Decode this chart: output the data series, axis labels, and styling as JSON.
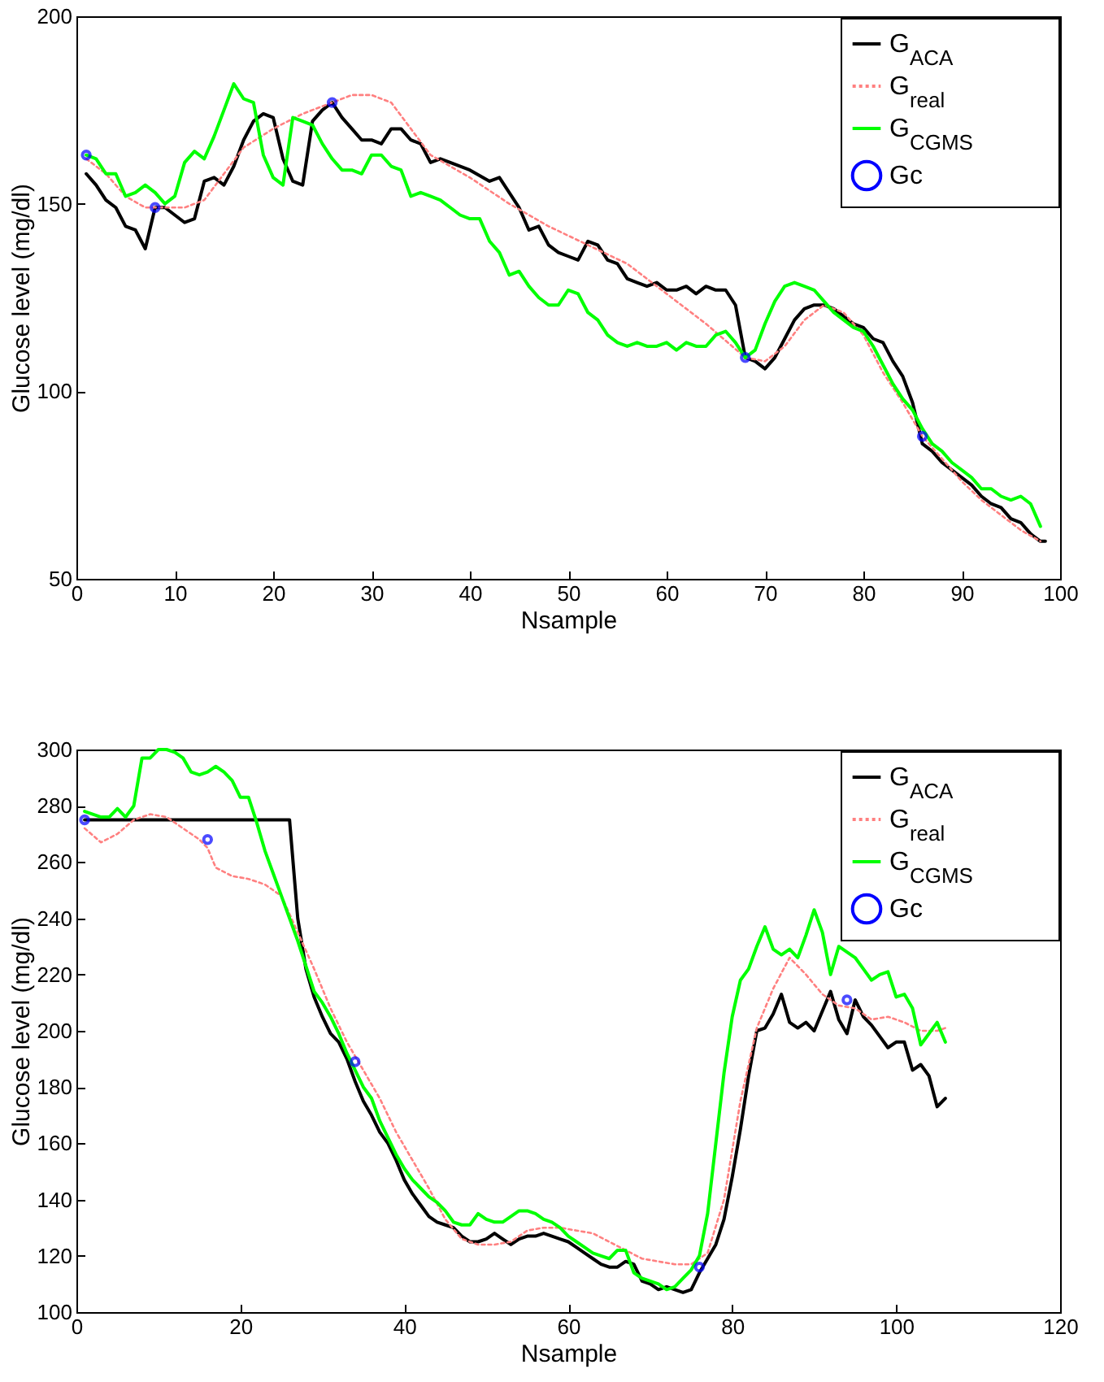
{
  "chart_data": [
    {
      "type": "line",
      "xlabel": "Nsample",
      "ylabel": "Glucose level (mg/dl)",
      "xlim": [
        0,
        100
      ],
      "xticks": [
        0,
        10,
        20,
        30,
        40,
        50,
        60,
        70,
        80,
        90,
        100
      ],
      "ylim": [
        50,
        200
      ],
      "yticks": [
        50,
        100,
        150,
        200
      ],
      "grid": false,
      "legend": "top right",
      "series": [
        {
          "name": "G$_{ACA}$",
          "color": "#000000",
          "type": "line",
          "line_style": "solid",
          "x": [
            1,
            2,
            3,
            4,
            5,
            6,
            7,
            8,
            9,
            10,
            11,
            12,
            13,
            14,
            15,
            16,
            17,
            18,
            19,
            20,
            21,
            22,
            23,
            24,
            25,
            26,
            27,
            28,
            29,
            30,
            31,
            32,
            33,
            34,
            35,
            36,
            37,
            38,
            40,
            42,
            43,
            44,
            45,
            46,
            47,
            48,
            49,
            50,
            51,
            52,
            53,
            54,
            55,
            56,
            57,
            58,
            59,
            60,
            61,
            62,
            63,
            64,
            65,
            66,
            67,
            68,
            69,
            70,
            71,
            72,
            73,
            74,
            75,
            76,
            77,
            78,
            79,
            80,
            81,
            82,
            83,
            84,
            85,
            86,
            87,
            88,
            89,
            90,
            91,
            92,
            93,
            94,
            95,
            96,
            97,
            98,
            98.5
          ],
          "values": [
            158,
            155,
            151,
            149,
            144,
            143,
            138,
            149,
            149,
            147,
            145,
            146,
            156,
            157,
            155,
            160,
            167,
            172,
            174,
            173,
            162,
            156,
            155,
            172,
            175,
            177,
            173,
            170,
            167,
            167,
            166,
            170,
            170,
            167,
            166,
            161,
            162,
            161,
            159,
            156,
            157,
            153,
            149,
            143,
            144,
            139,
            137,
            136,
            135,
            140,
            139,
            135,
            134,
            130,
            129,
            128,
            129,
            127,
            127,
            128,
            126,
            128,
            127,
            127,
            123,
            109,
            108,
            106,
            109,
            114,
            119,
            122,
            123,
            123,
            122,
            120,
            118,
            117,
            114,
            113,
            108,
            104,
            97,
            86,
            84,
            81,
            79,
            77,
            75,
            72,
            70,
            69,
            66,
            65,
            62,
            60,
            60
          ]
        },
        {
          "name": "G$_{real}$",
          "color": "#ff8080",
          "type": "line",
          "line_style": "dotted",
          "x": [
            1,
            3,
            5,
            7,
            9,
            11,
            13,
            15,
            17,
            20,
            23,
            26,
            28,
            30,
            32,
            34,
            36,
            40,
            44,
            48,
            52,
            56,
            60,
            64,
            68,
            70,
            72,
            74,
            76,
            78,
            80,
            82,
            84,
            86,
            88,
            90,
            92,
            94,
            96,
            98
          ],
          "values": [
            162,
            158,
            152,
            149,
            149,
            149,
            151,
            158,
            165,
            170,
            174,
            177,
            179,
            179,
            177,
            170,
            163,
            157,
            150,
            144,
            139,
            134,
            126,
            118,
            109,
            108,
            112,
            119,
            123,
            121,
            115,
            105,
            97,
            88,
            82,
            76,
            71,
            67,
            63,
            60
          ]
        },
        {
          "name": "G$_{CGMS}$",
          "color": "#00ff00",
          "type": "line",
          "line_style": "solid",
          "x": [
            1,
            2,
            3,
            4,
            5,
            6,
            7,
            8,
            9,
            10,
            11,
            12,
            13,
            14,
            15,
            16,
            17,
            18,
            19,
            20,
            21,
            22,
            23,
            24,
            25,
            26,
            27,
            28,
            29,
            30,
            31,
            32,
            33,
            34,
            35,
            36,
            37,
            38,
            39,
            40,
            41,
            42,
            43,
            44,
            45,
            46,
            47,
            48,
            49,
            50,
            51,
            52,
            53,
            54,
            55,
            56,
            57,
            58,
            59,
            60,
            61,
            62,
            63,
            64,
            65,
            66,
            67,
            68,
            69,
            70,
            71,
            72,
            73,
            74,
            75,
            76,
            77,
            78,
            79,
            80,
            81,
            82,
            83,
            84,
            85,
            86,
            87,
            88,
            89,
            90,
            91,
            92,
            93,
            94,
            95,
            96,
            97,
            98
          ],
          "values": [
            163,
            162,
            158,
            158,
            152,
            153,
            155,
            153,
            150,
            152,
            161,
            164,
            162,
            168,
            175,
            182,
            178,
            177,
            163,
            157,
            155,
            173,
            172,
            171,
            166,
            162,
            159,
            159,
            158,
            163,
            163,
            160,
            159,
            152,
            153,
            152,
            151,
            149,
            147,
            146,
            146,
            140,
            137,
            131,
            132,
            128,
            125,
            123,
            123,
            127,
            126,
            121,
            119,
            115,
            113,
            112,
            113,
            112,
            112,
            113,
            111,
            113,
            112,
            112,
            115,
            116,
            113,
            109,
            111,
            118,
            124,
            128,
            129,
            128,
            127,
            124,
            121,
            119,
            117,
            116,
            112,
            107,
            102,
            98,
            95,
            90,
            86,
            84,
            81,
            79,
            77,
            74,
            74,
            72,
            71,
            72,
            70,
            64
          ]
        },
        {
          "name": "Gc",
          "color": "#0000ff",
          "type": "scatter",
          "marker": "circle",
          "x": [
            1,
            8,
            26,
            68,
            86
          ],
          "values": [
            163,
            149,
            177,
            109,
            88
          ]
        }
      ]
    },
    {
      "type": "line",
      "xlabel": "Nsample",
      "ylabel": "Glucose level (mg/dl)",
      "xlim": [
        0,
        120
      ],
      "xticks": [
        0,
        20,
        40,
        60,
        80,
        100,
        120
      ],
      "ylim": [
        100,
        300
      ],
      "yticks": [
        100,
        120,
        140,
        160,
        180,
        200,
        220,
        240,
        260,
        280,
        300
      ],
      "grid": false,
      "legend": "top right",
      "series": [
        {
          "name": "G$_{ACA}$",
          "color": "#000000",
          "type": "line",
          "line_style": "solid",
          "x": [
            1,
            26,
            27,
            28,
            29,
            30,
            31,
            32,
            33,
            34,
            35,
            36,
            37,
            38,
            39,
            40,
            41,
            42,
            43,
            44,
            45,
            46,
            47,
            48,
            49,
            50,
            51,
            52,
            53,
            54,
            55,
            56,
            57,
            58,
            59,
            60,
            61,
            62,
            63,
            64,
            65,
            66,
            67,
            68,
            69,
            70,
            71,
            72,
            73,
            74,
            75,
            76,
            77,
            78,
            79,
            80,
            81,
            82,
            83,
            84,
            85,
            86,
            87,
            88,
            89,
            90,
            91,
            92,
            93,
            94,
            95,
            96,
            97,
            98,
            99,
            100,
            101,
            102,
            103,
            104,
            105,
            106
          ],
          "values": [
            275,
            275,
            240,
            222,
            212,
            205,
            199,
            196,
            190,
            182,
            175,
            170,
            164,
            160,
            154,
            147,
            142,
            138,
            134,
            132,
            131,
            130,
            127,
            125,
            125,
            126,
            128,
            126,
            124,
            126,
            127,
            127,
            128,
            127,
            126,
            125,
            123,
            121,
            119,
            117,
            116,
            116,
            118,
            117,
            111,
            110,
            108,
            109,
            108,
            107,
            108,
            114,
            119,
            124,
            133,
            148,
            165,
            184,
            200,
            201,
            206,
            213,
            203,
            201,
            203,
            200,
            207,
            214,
            204,
            199,
            211,
            205,
            202,
            198,
            194,
            196,
            196,
            186,
            188,
            184,
            173,
            176
          ]
        },
        {
          "name": "G$_{real}$",
          "color": "#ff8080",
          "type": "line",
          "line_style": "dotted",
          "x": [
            1,
            3,
            5,
            7,
            9,
            11,
            13,
            15,
            16,
            17,
            19,
            21,
            23,
            25,
            27,
            29,
            31,
            33,
            35,
            37,
            39,
            41,
            43,
            45,
            47,
            49,
            51,
            53,
            55,
            57,
            59,
            61,
            63,
            65,
            67,
            69,
            71,
            73,
            75,
            77,
            79,
            81,
            83,
            85,
            87,
            89,
            91,
            93,
            95,
            97,
            99,
            101,
            103,
            105,
            106
          ],
          "values": [
            272,
            267,
            270,
            275,
            277,
            276,
            272,
            268,
            265,
            258,
            255,
            254,
            252,
            248,
            235,
            222,
            208,
            196,
            186,
            176,
            164,
            154,
            144,
            133,
            126,
            124,
            124,
            125,
            129,
            130,
            130,
            129,
            128,
            125,
            122,
            119,
            118,
            117,
            117,
            121,
            140,
            175,
            201,
            215,
            226,
            220,
            213,
            209,
            208,
            204,
            205,
            203,
            200,
            200,
            201
          ]
        },
        {
          "name": "G$_{CGMS}$",
          "color": "#00ff00",
          "type": "line",
          "line_style": "solid",
          "x": [
            1,
            2,
            3,
            4,
            5,
            6,
            7,
            8,
            9,
            10,
            11,
            12,
            13,
            14,
            15,
            16,
            17,
            18,
            19,
            20,
            21,
            22,
            23,
            24,
            25,
            26,
            27,
            28,
            29,
            30,
            31,
            32,
            33,
            34,
            35,
            36,
            37,
            38,
            39,
            40,
            41,
            42,
            43,
            44,
            45,
            46,
            47,
            48,
            49,
            50,
            51,
            52,
            53,
            54,
            55,
            56,
            57,
            58,
            59,
            60,
            61,
            62,
            63,
            64,
            65,
            66,
            67,
            68,
            69,
            70,
            71,
            72,
            73,
            74,
            75,
            76,
            77,
            78,
            79,
            80,
            81,
            82,
            83,
            84,
            85,
            86,
            87,
            88,
            89,
            90,
            91,
            92,
            93,
            94,
            95,
            96,
            97,
            98,
            99,
            100,
            101,
            102,
            103,
            104,
            105,
            106
          ],
          "values": [
            278,
            277,
            276,
            276,
            279,
            276,
            280,
            297,
            297,
            300,
            300,
            299,
            297,
            292,
            291,
            292,
            294,
            292,
            289,
            283,
            283,
            274,
            264,
            256,
            248,
            240,
            232,
            223,
            214,
            210,
            205,
            199,
            192,
            186,
            180,
            176,
            168,
            162,
            156,
            151,
            147,
            144,
            141,
            139,
            136,
            132,
            131,
            131,
            135,
            133,
            132,
            132,
            134,
            136,
            136,
            135,
            133,
            132,
            130,
            127,
            125,
            123,
            121,
            120,
            119,
            122,
            122,
            114,
            112,
            111,
            110,
            108,
            109,
            112,
            115,
            120,
            135,
            160,
            185,
            205,
            218,
            222,
            230,
            237,
            229,
            227,
            229,
            226,
            234,
            243,
            235,
            220,
            230,
            228,
            226,
            222,
            218,
            220,
            221,
            212,
            213,
            208,
            195,
            199,
            203,
            196
          ]
        },
        {
          "name": "Gc",
          "color": "#0000ff",
          "type": "scatter",
          "marker": "circle",
          "x": [
            1,
            16,
            34,
            76,
            94
          ],
          "values": [
            275,
            268,
            189,
            116,
            211
          ]
        }
      ]
    }
  ]
}
